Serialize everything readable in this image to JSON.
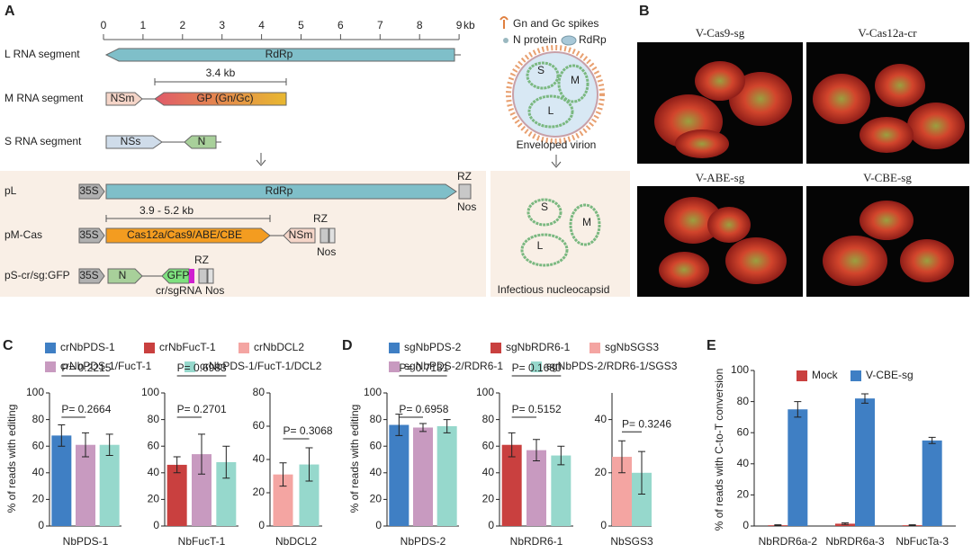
{
  "diagram": {
    "label": "A",
    "scale": {
      "unit": "kb",
      "ticks": [
        0,
        1,
        2,
        3,
        4,
        5,
        6,
        7,
        8,
        9
      ]
    },
    "segments": [
      {
        "name": "L RNA segment",
        "genes": [
          "RdRp"
        ]
      },
      {
        "name": "M RNA segment",
        "size": "3.4 kb",
        "genes": [
          "NSm",
          "GP (Gn/Gc)"
        ]
      },
      {
        "name": "S RNA segment",
        "genes": [
          "NSs",
          "N"
        ]
      }
    ],
    "constructs": [
      {
        "name": "pL",
        "parts": [
          "35S",
          "RdRp",
          "RZ",
          "Nos"
        ]
      },
      {
        "name": "pM-Cas",
        "size": "3.9 - 5.2 kb",
        "parts": [
          "35S",
          "Cas12a/Cas9/ABE/CBE",
          "NSm",
          "RZ",
          "Nos"
        ]
      },
      {
        "name": "pS-cr/sg:GFP",
        "parts": [
          "35S",
          "N",
          "GFP",
          "RZ",
          "cr/sgRNA",
          "Nos"
        ]
      }
    ],
    "virion": {
      "legend": [
        "Gn and Gc spikes",
        "N protein",
        "RdRp"
      ],
      "segments": [
        "S",
        "M",
        "L"
      ],
      "caption": "Enveloped virion"
    },
    "nucleocapsid": {
      "segments": [
        "S",
        "M",
        "L"
      ],
      "caption": "Infectious nucleocapsid"
    }
  },
  "photos": {
    "label": "B",
    "captions": [
      "V-Cas9-sg",
      "V-Cas12a-cr",
      "V-ABE-sg",
      "V-CBE-sg"
    ]
  },
  "chart_data": [
    {
      "type": "bar_panels",
      "label": "C",
      "ylabel": "% of reads with editing",
      "series": [
        {
          "name": "crNbPDS-1",
          "color": "#3f7fc4",
          "values": [
            68,
            null,
            null
          ],
          "errors": [
            8,
            null,
            null
          ]
        },
        {
          "name": "crNbFucT-1",
          "color": "#c9403f",
          "values": [
            null,
            46,
            null
          ],
          "errors": [
            null,
            6,
            null
          ]
        },
        {
          "name": "crNbDCL2",
          "color": "#f4a5a2",
          "values": [
            null,
            null,
            31
          ],
          "errors": [
            null,
            null,
            7
          ]
        },
        {
          "name": "crNbPDS-1/FucT-1",
          "color": "#c89ac0",
          "values": [
            61,
            54,
            null
          ],
          "errors": [
            9,
            15,
            null
          ]
        },
        {
          "name": "crNbPDS-1/FucT-1/DCL2",
          "color": "#96d8cc",
          "values": [
            61,
            48,
            37
          ],
          "errors": [
            8,
            12,
            10
          ]
        }
      ],
      "subplots": [
        {
          "xlabel": "NbPDS-1",
          "ylim": [
            0,
            100
          ],
          "yticks": [
            0,
            20,
            40,
            60,
            80,
            100
          ],
          "pvalues": [
            "P= 0.2215",
            "P= 0.2664"
          ]
        },
        {
          "xlabel": "NbFucT-1",
          "ylim": [
            0,
            100
          ],
          "yticks": [
            0,
            20,
            40,
            60,
            80,
            100
          ],
          "pvalues": [
            "P= 0.6983",
            "P= 0.2701"
          ]
        },
        {
          "xlabel": "NbDCL2",
          "ylim": [
            0,
            80
          ],
          "yticks": [
            0,
            20,
            40,
            60,
            80
          ],
          "pvalues": [
            "P= 0.3068"
          ]
        }
      ]
    },
    {
      "type": "bar_panels",
      "label": "D",
      "ylabel": "% of reads with editing",
      "series": [
        {
          "name": "sgNbPDS-2",
          "color": "#3f7fc4",
          "values": [
            76,
            null,
            null
          ],
          "errors": [
            8,
            null,
            null
          ]
        },
        {
          "name": "sgNbRDR6-1",
          "color": "#c9403f",
          "values": [
            null,
            61,
            null
          ],
          "errors": [
            null,
            9,
            null
          ]
        },
        {
          "name": "sgNbSGS3",
          "color": "#f4a5a2",
          "values": [
            null,
            null,
            26
          ],
          "errors": [
            null,
            null,
            6
          ]
        },
        {
          "name": "sgNbPDS-2/RDR6-1",
          "color": "#c89ac0",
          "values": [
            74,
            57,
            null
          ],
          "errors": [
            3,
            8,
            null
          ]
        },
        {
          "name": "sgNbPDS-2/RDR6-1/SGS3",
          "color": "#96d8cc",
          "values": [
            75,
            53,
            20
          ],
          "errors": [
            5,
            7,
            8
          ]
        }
      ],
      "subplots": [
        {
          "xlabel": "NbPDS-2",
          "ylim": [
            0,
            100
          ],
          "yticks": [
            0,
            20,
            40,
            60,
            80,
            100
          ],
          "pvalues": [
            "P= 0.7131",
            "P= 0.6958"
          ]
        },
        {
          "xlabel": "NbRDR6-1",
          "ylim": [
            0,
            100
          ],
          "yticks": [
            0,
            20,
            40,
            60,
            80,
            100
          ],
          "pvalues": [
            "P= 0.1680",
            "P= 0.5152"
          ]
        },
        {
          "xlabel": "NbSGS3",
          "ylim": [
            0,
            50
          ],
          "yticks": [
            0,
            20,
            40
          ],
          "pvalues": [
            "P= 0.3246"
          ]
        }
      ]
    },
    {
      "type": "bar",
      "label": "E",
      "ylabel": "% of reads with C-to-T conversion",
      "categories": [
        "NbRDR6a-2",
        "NbRDR6a-3",
        "NbFucTa-3"
      ],
      "series": [
        {
          "name": "Mock",
          "color": "#c9403f",
          "values": [
            0.5,
            1.5,
            0.5
          ],
          "errors": [
            0.3,
            0.5,
            0.3
          ]
        },
        {
          "name": "V-CBE-sg",
          "color": "#3f7fc4",
          "values": [
            75,
            82,
            55
          ],
          "errors": [
            5,
            3,
            2
          ]
        }
      ],
      "ylim": [
        0,
        100
      ],
      "yticks": [
        0,
        20,
        40,
        60,
        80,
        100
      ]
    }
  ]
}
